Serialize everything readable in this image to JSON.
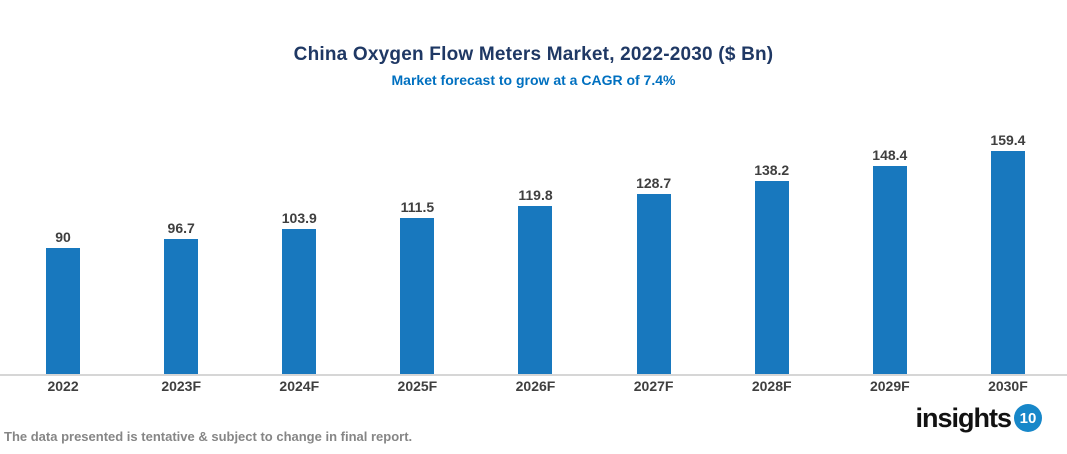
{
  "header": {
    "title": "China Oxygen Flow Meters Market, 2022-2030 ($ Bn)",
    "subtitle": "Market forecast to grow at a CAGR of 7.4%"
  },
  "footer": {
    "note": "The data presented is tentative & subject to change in final report."
  },
  "logo": {
    "text": "insights",
    "badge": "10"
  },
  "colors": {
    "bar": "#1878BE",
    "title": "#1F3864",
    "subtitle": "#0070C0",
    "data_label": "#3F3F3F",
    "axis_line": "#D6D6D6",
    "footer_text": "#868686",
    "logo_badge": "#1787C9"
  },
  "chart_data": {
    "type": "bar",
    "title": "China Oxygen Flow Meters Market, 2022-2030 ($ Bn)",
    "subtitle": "Market forecast to grow at a CAGR of 7.4%",
    "categories": [
      "2022",
      "2023F",
      "2024F",
      "2025F",
      "2026F",
      "2027F",
      "2028F",
      "2029F",
      "2030F"
    ],
    "values": [
      90,
      96.7,
      103.9,
      111.5,
      119.8,
      128.7,
      138.2,
      148.4,
      159.4
    ],
    "value_labels": [
      "90",
      "96.7",
      "103.9",
      "111.5",
      "119.8",
      "128.7",
      "138.2",
      "148.4",
      "159.4"
    ],
    "xlabel": "",
    "ylabel": "",
    "ylim": [
      0,
      170
    ],
    "grid": false,
    "legend": false,
    "bar_color": "#1878BE"
  }
}
